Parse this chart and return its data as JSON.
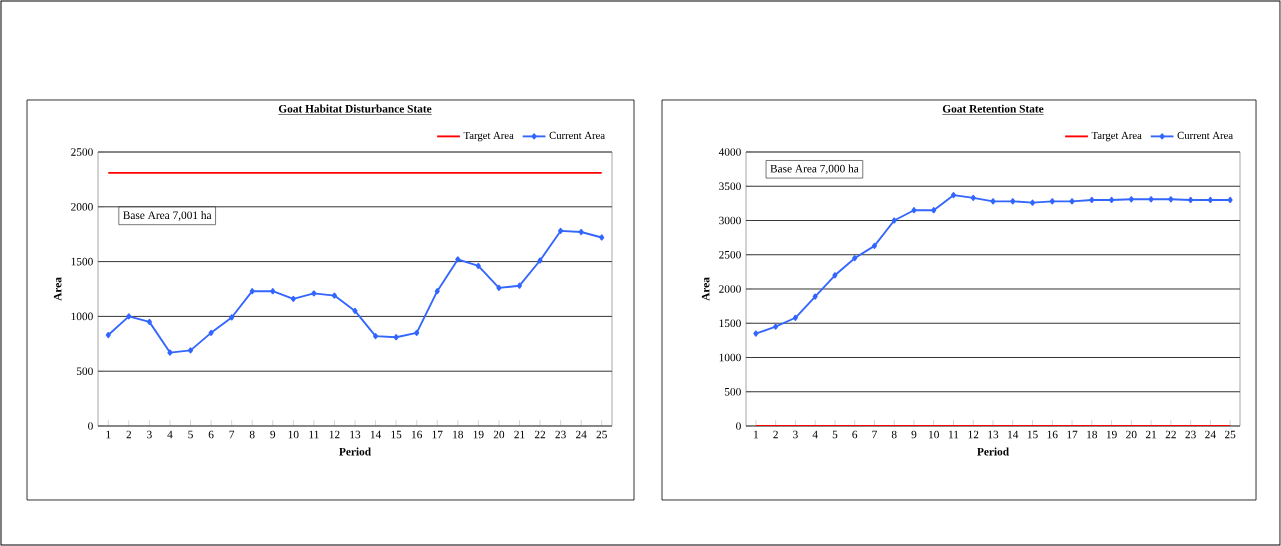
{
  "chart_data": [
    {
      "type": "line",
      "title": "Goat Habitat Disturbance State",
      "xlabel": "Period",
      "ylabel": "Area",
      "categories": [
        "1",
        "2",
        "3",
        "4",
        "5",
        "6",
        "7",
        "8",
        "9",
        "10",
        "11",
        "12",
        "13",
        "14",
        "15",
        "16",
        "17",
        "18",
        "19",
        "20",
        "21",
        "22",
        "23",
        "24",
        "25"
      ],
      "series": [
        {
          "name": "Target Area",
          "color": "#ff0000",
          "marker": "none",
          "values": [
            2310,
            2310,
            2310,
            2310,
            2310,
            2310,
            2310,
            2310,
            2310,
            2310,
            2310,
            2310,
            2310,
            2310,
            2310,
            2310,
            2310,
            2310,
            2310,
            2310,
            2310,
            2310,
            2310,
            2310,
            2310
          ]
        },
        {
          "name": "Current Area",
          "color": "#3366ff",
          "marker": "diamond",
          "values": [
            830,
            1000,
            950,
            670,
            690,
            850,
            990,
            1230,
            1230,
            1160,
            1210,
            1190,
            1050,
            820,
            810,
            850,
            1230,
            1520,
            1460,
            1260,
            1280,
            1510,
            1780,
            1770,
            1720
          ]
        }
      ],
      "ylim": [
        0,
        2500
      ],
      "yticks": [
        0,
        500,
        1000,
        1500,
        2000,
        2500
      ],
      "grid": "y",
      "legend": "top right",
      "line_style": "solid",
      "annotations": [
        "Base Area 7,001 ha"
      ]
    },
    {
      "type": "line",
      "title": "Goat Retention State",
      "xlabel": "Period",
      "ylabel": "Area",
      "categories": [
        "1",
        "2",
        "3",
        "4",
        "5",
        "6",
        "7",
        "8",
        "9",
        "10",
        "11",
        "12",
        "13",
        "14",
        "15",
        "16",
        "17",
        "18",
        "19",
        "20",
        "21",
        "22",
        "23",
        "24",
        "25"
      ],
      "series": [
        {
          "name": "Target Area",
          "color": "#ff0000",
          "marker": "none",
          "values": [
            0,
            0,
            0,
            0,
            0,
            0,
            0,
            0,
            0,
            0,
            0,
            0,
            0,
            0,
            0,
            0,
            0,
            0,
            0,
            0,
            0,
            0,
            0,
            0,
            0
          ]
        },
        {
          "name": "Current Area",
          "color": "#3366ff",
          "marker": "diamond",
          "values": [
            1350,
            1450,
            1580,
            1890,
            2200,
            2450,
            2630,
            3000,
            3150,
            3150,
            3370,
            3330,
            3280,
            3280,
            3260,
            3280,
            3280,
            3300,
            3300,
            3310,
            3310,
            3310,
            3300,
            3300,
            3300
          ]
        }
      ],
      "ylim": [
        0,
        4000
      ],
      "yticks": [
        0,
        500,
        1000,
        1500,
        2000,
        2500,
        3000,
        3500,
        4000
      ],
      "grid": "y",
      "legend": "top right",
      "line_style": "solid",
      "annotations": [
        "Base Area 7,000 ha"
      ]
    }
  ]
}
